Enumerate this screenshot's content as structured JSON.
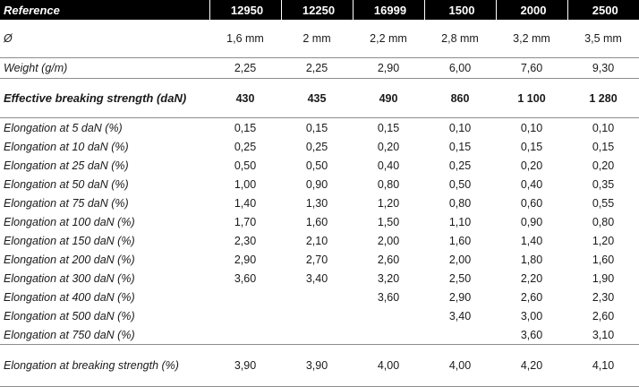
{
  "table": {
    "header": {
      "label": "Reference",
      "refs": [
        "12950",
        "12250",
        "16999",
        "1500",
        "2000",
        "2500"
      ]
    },
    "diameter": {
      "label": "Ø",
      "values": [
        "1,6 mm",
        "2 mm",
        "2,2 mm",
        "2,8 mm",
        "3,2 mm",
        "3,5 mm"
      ]
    },
    "weight": {
      "label": "Weight (g/m)",
      "values": [
        "2,25",
        "2,25",
        "2,90",
        "6,00",
        "7,60",
        "9,30"
      ]
    },
    "breaking_strength": {
      "label": "Effective breaking strength (daN)",
      "values": [
        "430",
        "435",
        "490",
        "860",
        "1 100",
        "1 280"
      ]
    },
    "elongation_rows": [
      {
        "label": "Elongation at 5 daN (%)",
        "values": [
          "0,15",
          "0,15",
          "0,15",
          "0,10",
          "0,10",
          "0,10"
        ]
      },
      {
        "label": "Elongation at 10 daN (%)",
        "values": [
          "0,25",
          "0,25",
          "0,20",
          "0,15",
          "0,15",
          "0,15"
        ]
      },
      {
        "label": "Elongation at 25 daN (%)",
        "values": [
          "0,50",
          "0,50",
          "0,40",
          "0,25",
          "0,20",
          "0,20"
        ]
      },
      {
        "label": "Elongation at 50 daN (%)",
        "values": [
          "1,00",
          "0,90",
          "0,80",
          "0,50",
          "0,40",
          "0,35"
        ]
      },
      {
        "label": "Elongation at 75 daN (%)",
        "values": [
          "1,40",
          "1,30",
          "1,20",
          "0,80",
          "0,60",
          "0,55"
        ]
      },
      {
        "label": "Elongation at 100 daN (%)",
        "values": [
          "1,70",
          "1,60",
          "1,50",
          "1,10",
          "0,90",
          "0,80"
        ]
      },
      {
        "label": "Elongation at 150 daN (%)",
        "values": [
          "2,30",
          "2,10",
          "2,00",
          "1,60",
          "1,40",
          "1,20"
        ]
      },
      {
        "label": "Elongation at 200 daN (%)",
        "values": [
          "2,90",
          "2,70",
          "2,60",
          "2,00",
          "1,80",
          "1,60"
        ]
      },
      {
        "label": "Elongation at 300 daN (%)",
        "values": [
          "3,60",
          "3,40",
          "3,20",
          "2,50",
          "2,20",
          "1,90"
        ]
      },
      {
        "label": "Elongation at 400 daN (%)",
        "values": [
          "",
          "",
          "3,60",
          "2,90",
          "2,60",
          "2,30"
        ]
      },
      {
        "label": "Elongation at 500 daN (%)",
        "values": [
          "",
          "",
          "",
          "3,40",
          "3,00",
          "2,60"
        ]
      },
      {
        "label": "Elongation at 750 daN (%)",
        "values": [
          "",
          "",
          "",
          "",
          "3,60",
          "3,10"
        ]
      }
    ],
    "elongation_breaking": {
      "label": "Elongation at breaking strength (%)",
      "values": [
        "3,90",
        "3,90",
        "4,00",
        "4,00",
        "4,20",
        "4,10"
      ]
    }
  }
}
